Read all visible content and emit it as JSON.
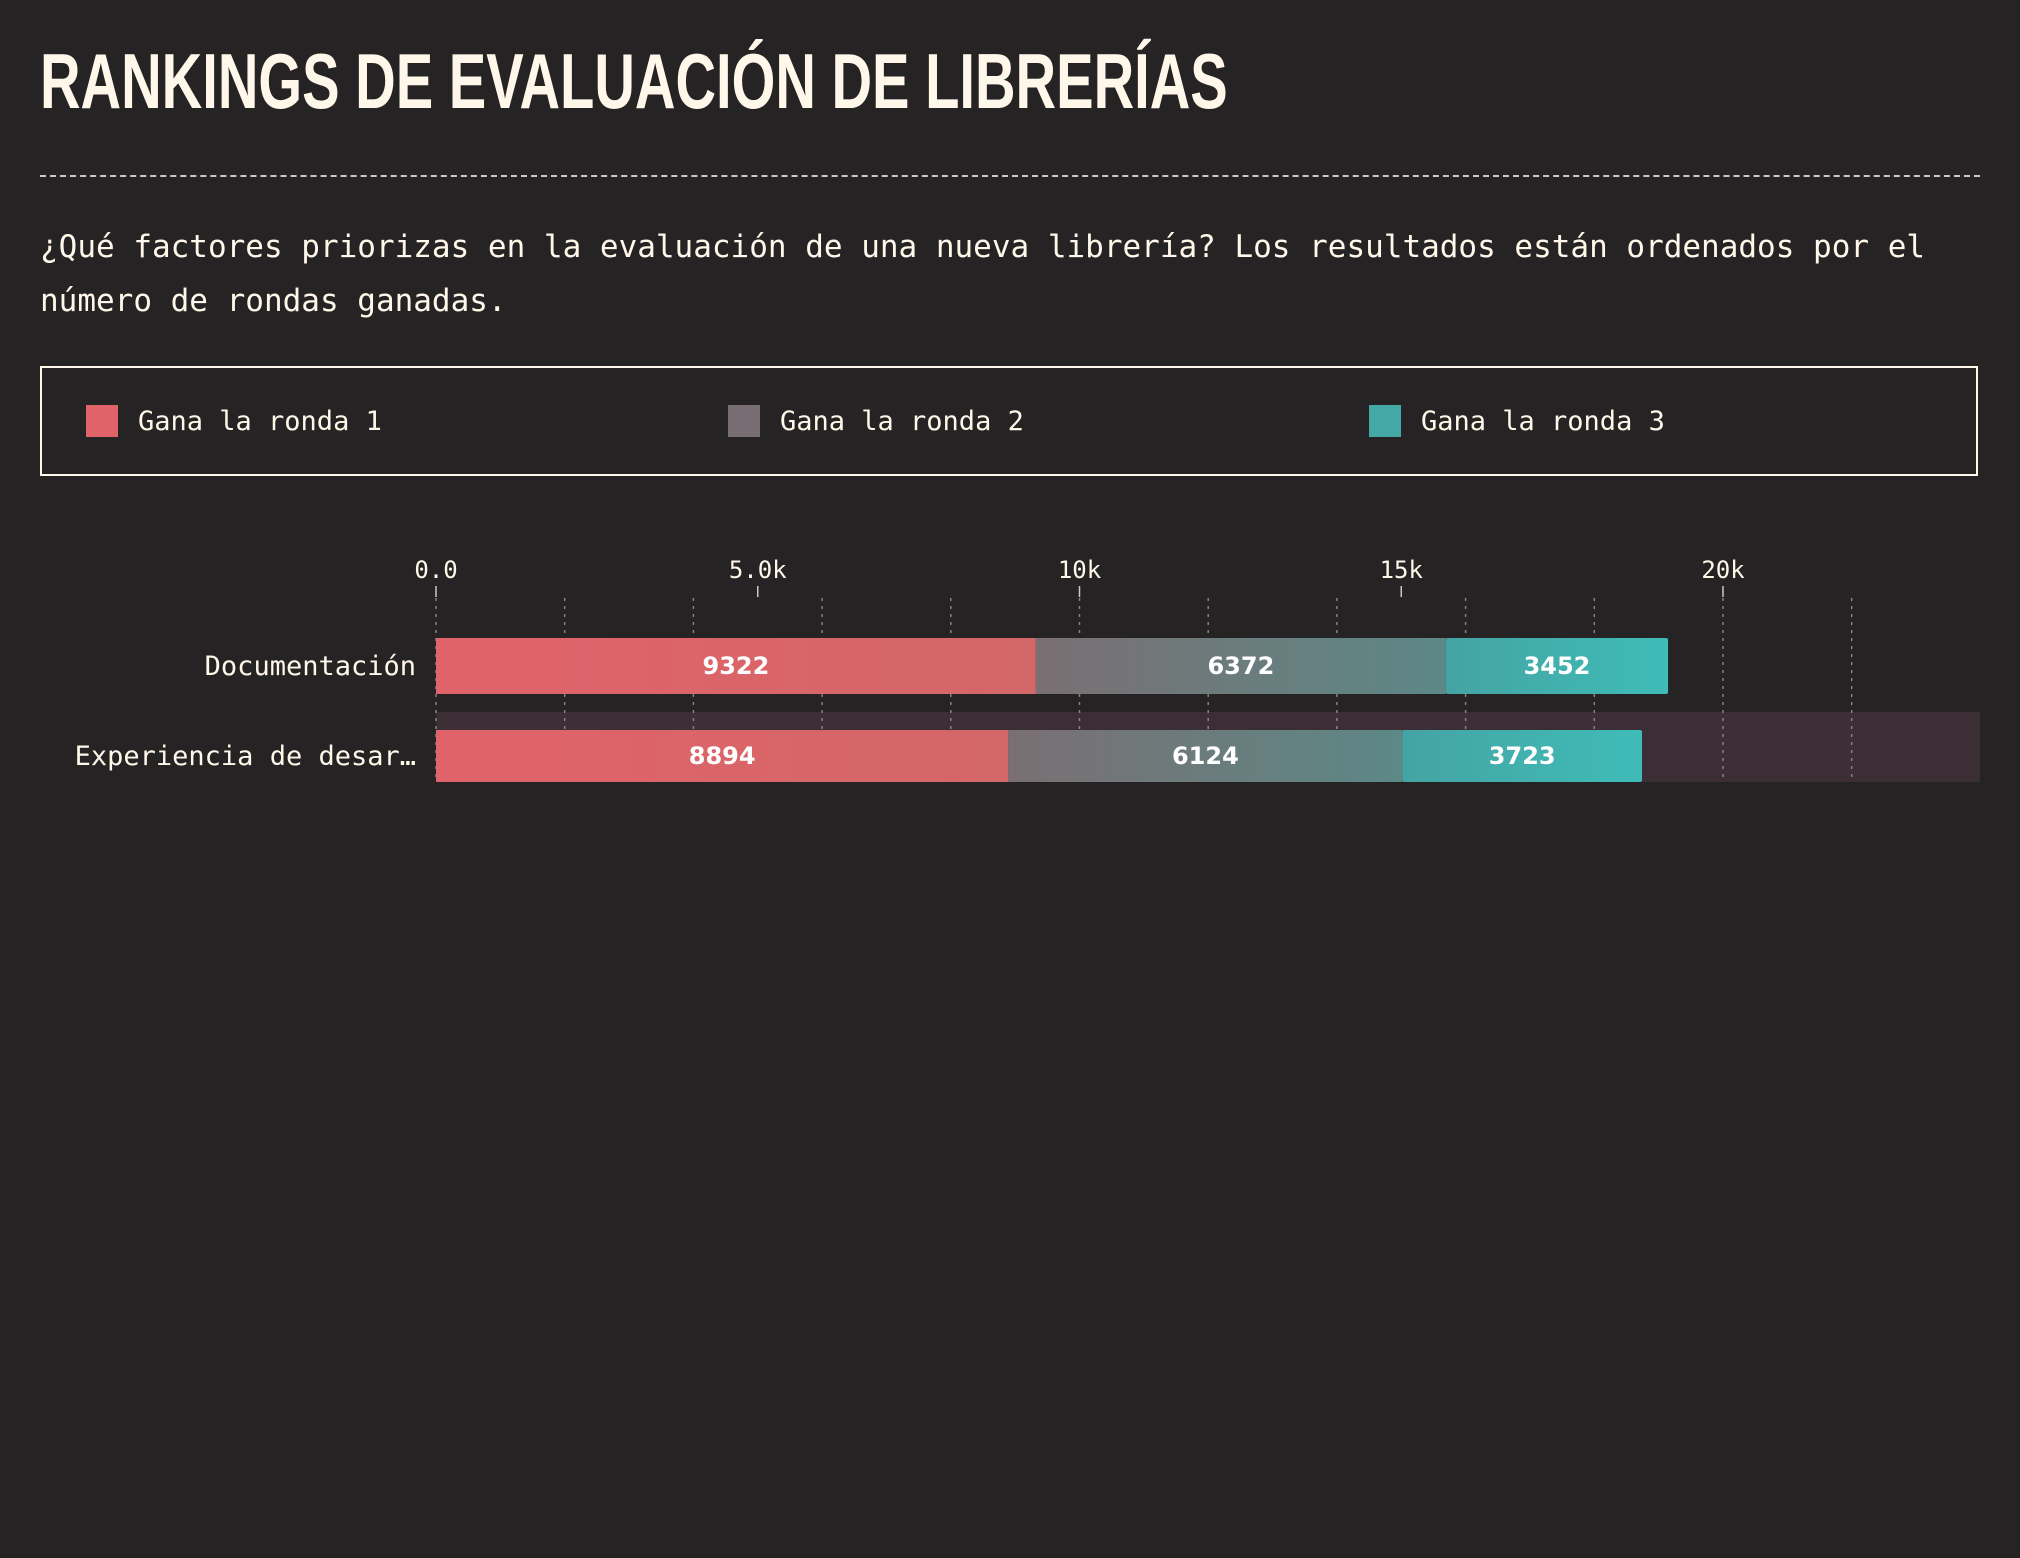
{
  "title": "RANKINGS DE EVALUACIÓN DE LIBRERÍAS",
  "subtitle": "¿Qué factores priorizas en la evaluación de una nueva librería? Los resultados están ordenados por el número de rondas ganadas.",
  "legend": [
    {
      "label": "Gana la ronda 1",
      "color": "#e0636a"
    },
    {
      "label": "Gana la ronda 2",
      "color": "#776d73"
    },
    {
      "label": "Gana la ronda 3",
      "color": "#44a9a6"
    }
  ],
  "chart_data": {
    "type": "bar",
    "orientation": "horizontal",
    "stacked": true,
    "categories": [
      "Documentación",
      "Experiencia de desar…"
    ],
    "series": [
      {
        "name": "Gana la ronda 1",
        "values": [
          9322,
          8894
        ],
        "color": "#e0636a"
      },
      {
        "name": "Gana la ronda 2",
        "values": [
          6372,
          6124
        ],
        "color": "#776d73"
      },
      {
        "name": "Gana la ronda 3",
        "values": [
          3452,
          3723
        ],
        "color": "#44a9a6"
      }
    ],
    "xticks": [
      0,
      5000,
      10000,
      15000,
      20000
    ],
    "xtick_labels": [
      "0.0",
      "5.0k",
      "10k",
      "15k",
      "20k"
    ],
    "xlim": [
      0,
      24000
    ],
    "minor_grid_step": 2000,
    "axis_position": "top",
    "grid": true,
    "highlighted_category": "Experiencia de desar…"
  }
}
